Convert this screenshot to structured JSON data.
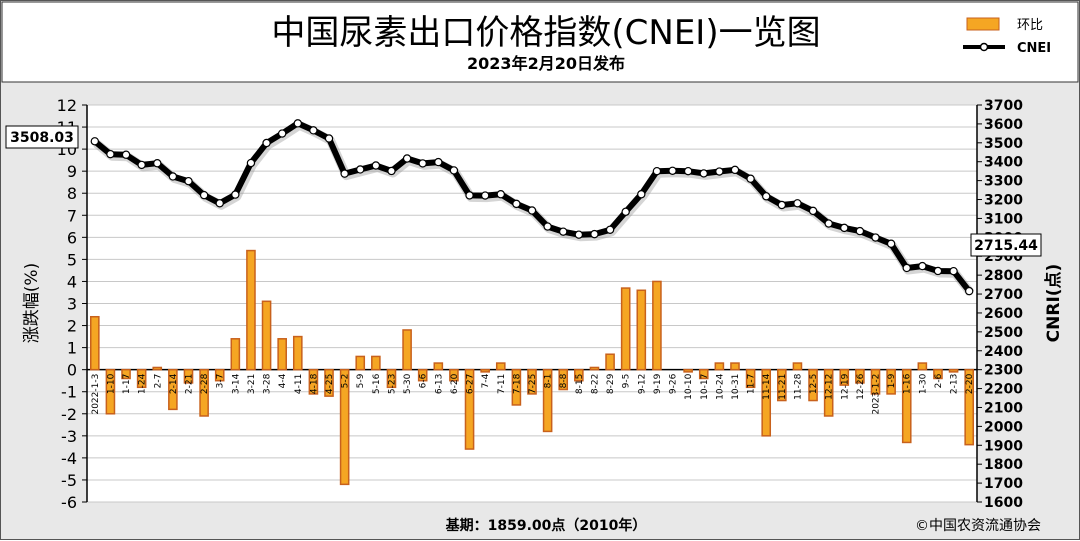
{
  "header": {
    "title": "中国尿素出口价格指数(CNEI)一览图",
    "subtitle": "2023年2月20日发布"
  },
  "legend": {
    "bar_label": "环比",
    "line_label": "CNEI"
  },
  "footer": {
    "base_note": "基期：1859.00点（2010年）",
    "copyright": "©中国农资流通协会"
  },
  "callouts": {
    "first_value": "3508.03",
    "last_value": "2715.44"
  },
  "colors": {
    "bar_fill": "#f5a623",
    "bar_edge": "#c8611c",
    "line": "#000000",
    "marker_fill": "#ffffff",
    "plot_bg": "#ffffff",
    "grid": "#c8c8c8",
    "frame_bg": "#e8e8e8"
  },
  "chart_data": {
    "type": "bar+line",
    "categories": [
      "2022-1-3",
      "1-10",
      "1-17",
      "1-24",
      "2-7",
      "2-14",
      "2-21",
      "2-28",
      "3-7",
      "3-14",
      "3-21",
      "3-28",
      "4-4",
      "4-11",
      "4-18",
      "4-25",
      "5-2",
      "5-9",
      "5-16",
      "5-23",
      "5-30",
      "6-6",
      "6-13",
      "6-20",
      "6-27",
      "7-4",
      "7-11",
      "7-18",
      "7-25",
      "8-1",
      "8-8",
      "8-15",
      "8-22",
      "8-29",
      "9-5",
      "9-12",
      "9-19",
      "9-26",
      "10-10",
      "10-17",
      "10-24",
      "10-31",
      "11-7",
      "11-14",
      "11-21",
      "11-28",
      "12-5",
      "12-12",
      "12-19",
      "12-26",
      "2023-1-2",
      "1-9",
      "1-16",
      "1-30",
      "2-6",
      "2-13",
      "2-20"
    ],
    "bar_series": {
      "name": "环比",
      "axis": "left",
      "values": [
        2.4,
        -2.0,
        -0.4,
        -0.8,
        0.1,
        -1.8,
        -0.6,
        -2.1,
        -0.5,
        1.4,
        5.4,
        3.1,
        1.4,
        1.5,
        -1.1,
        -1.2,
        -5.2,
        0.6,
        0.6,
        -0.8,
        1.8,
        -0.5,
        0.3,
        -0.5,
        -3.6,
        -0.1,
        0.3,
        -1.6,
        -1.1,
        -2.8,
        -0.9,
        -0.5,
        0.1,
        0.7,
        3.7,
        3.6,
        4.0,
        0.0,
        -0.1,
        -0.4,
        0.3,
        0.3,
        -0.8,
        -3.0,
        -1.4,
        0.3,
        -1.4,
        -2.1,
        -0.7,
        -0.6,
        -1.1,
        -1.1,
        -3.3,
        0.3,
        -0.4,
        -0.1,
        -3.4
      ]
    },
    "line_series": {
      "name": "CNEI",
      "axis": "right",
      "values": [
        3508.03,
        3440,
        3437,
        3383,
        3392,
        3322,
        3297,
        3223,
        3180,
        3226,
        3393,
        3499,
        3549,
        3603,
        3566,
        3523,
        3337,
        3359,
        3380,
        3351,
        3417,
        3391,
        3398,
        3354,
        3222,
        3221,
        3228,
        3177,
        3142,
        3057,
        3030,
        3014,
        3017,
        3040,
        3135,
        3228,
        3350,
        3352,
        3350,
        3338,
        3348,
        3357,
        3310,
        3217,
        3171,
        3180,
        3140,
        3073,
        3050,
        3033,
        2999,
        2966,
        2838,
        2848,
        2822,
        2821,
        2715.44
      ]
    },
    "left_axis": {
      "label": "涨跌幅(%)",
      "min": -6,
      "max": 12,
      "ticks": [
        12,
        11,
        10,
        9,
        8,
        7,
        6,
        5,
        4,
        3,
        2,
        1,
        0,
        -1,
        -2,
        -3,
        -4,
        -5,
        -6
      ]
    },
    "right_axis": {
      "label": "CNRI(点)",
      "min": 1600,
      "max": 3700,
      "ticks": [
        3700,
        3600,
        3500,
        3400,
        3300,
        3200,
        3100,
        3000,
        2900,
        2800,
        2700,
        2600,
        2500,
        2400,
        2300,
        2200,
        2100,
        2000,
        1900,
        1800,
        1700,
        1600
      ]
    },
    "grid": true,
    "legend_position": "top-right"
  }
}
